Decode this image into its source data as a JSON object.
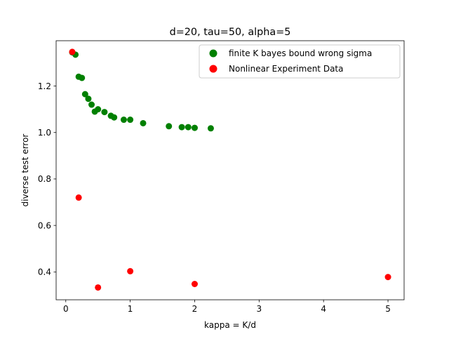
{
  "chart_data": {
    "type": "scatter",
    "title": "d=20, tau=50, alpha=5",
    "xlabel": "kappa = K/d",
    "ylabel": "diverse test error",
    "xlim": [
      -0.15,
      5.25
    ],
    "ylim": [
      0.28,
      1.395
    ],
    "xticks": [
      0,
      1,
      2,
      3,
      4,
      5
    ],
    "yticks": [
      0.4,
      0.6,
      0.8,
      1.0,
      1.2
    ],
    "ytick_labels": [
      "0.4",
      "0.6",
      "0.8",
      "1.0",
      "1.2"
    ],
    "grid": false,
    "legend_position": "top-right",
    "series": [
      {
        "name": "finite K bayes bound wrong sigma",
        "color": "#008000",
        "x": [
          0.1,
          0.15,
          0.2,
          0.25,
          0.3,
          0.35,
          0.4,
          0.45,
          0.5,
          0.6,
          0.7,
          0.75,
          0.9,
          1.0,
          1.2,
          1.6,
          1.8,
          1.9,
          2.0,
          2.25
        ],
        "y": [
          1.345,
          1.335,
          1.24,
          1.235,
          1.165,
          1.145,
          1.12,
          1.09,
          1.1,
          1.088,
          1.072,
          1.065,
          1.055,
          1.055,
          1.04,
          1.027,
          1.023,
          1.023,
          1.02,
          1.018
        ]
      },
      {
        "name": "Nonlinear Experiment Data",
        "color": "#ff0000",
        "x": [
          0.1,
          0.2,
          0.5,
          1.0,
          2.0,
          5.0
        ],
        "y": [
          1.347,
          0.72,
          0.333,
          0.403,
          0.348,
          0.378
        ]
      }
    ]
  }
}
